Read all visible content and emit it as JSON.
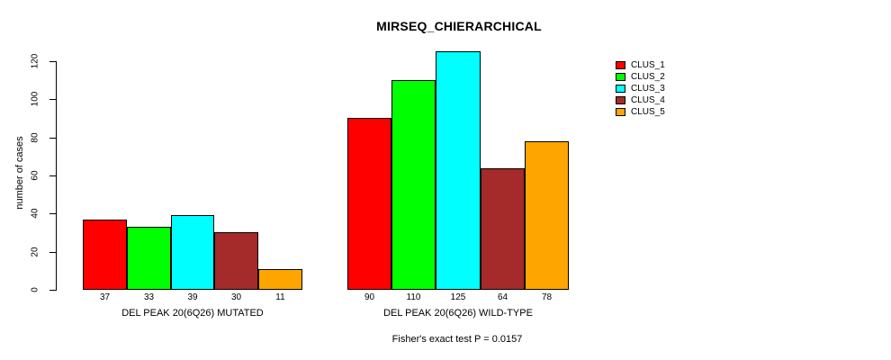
{
  "chart_data": {
    "type": "bar",
    "title": "MIRSEQ_CHIERARCHICAL",
    "ylabel": "number of cases",
    "xlabel": "",
    "annotation": "Fisher's exact test P = 0.0157",
    "categories": [
      "DEL PEAK 20(6Q26) MUTATED",
      "DEL PEAK 20(6Q26) WILD-TYPE"
    ],
    "series": [
      {
        "name": "CLUS_1",
        "color": "#FF0000",
        "values": [
          37,
          90
        ]
      },
      {
        "name": "CLUS_2",
        "color": "#00FF00",
        "values": [
          33,
          110
        ]
      },
      {
        "name": "CLUS_3",
        "color": "#00FFFF",
        "values": [
          39,
          125
        ]
      },
      {
        "name": "CLUS_4",
        "color": "#A52A2A",
        "values": [
          30,
          64
        ]
      },
      {
        "name": "CLUS_5",
        "color": "#FFA500",
        "values": [
          11,
          78
        ]
      }
    ],
    "bar_value_labels": [
      [
        37,
        33,
        39,
        30,
        11
      ],
      [
        90,
        110,
        125,
        64,
        78
      ]
    ],
    "yticks": [
      0,
      20,
      40,
      60,
      80,
      100,
      120
    ],
    "ylim": [
      0,
      120
    ],
    "grid": false,
    "legend_position": "right",
    "bar_border_color": "#000000",
    "background_color": "#FFFFFF"
  }
}
